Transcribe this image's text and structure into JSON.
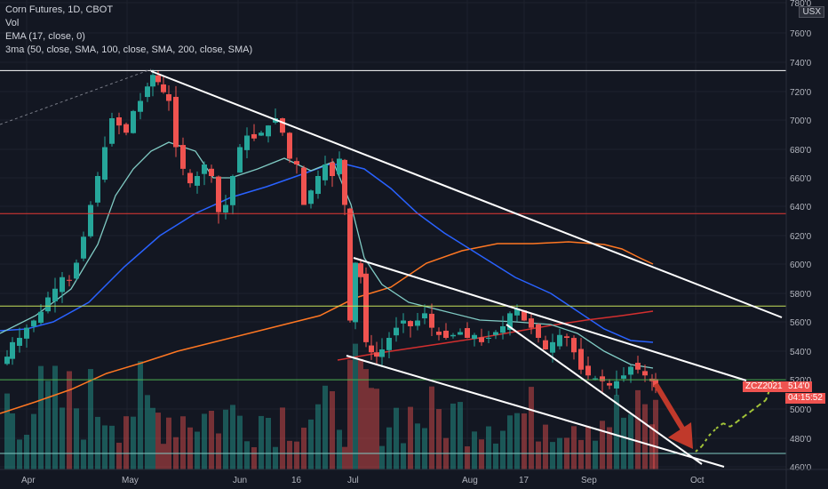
{
  "legend": {
    "title": "Corn Futures, 1D, CBOT",
    "vol": "Vol",
    "ema": "EMA (17, close, 0)",
    "ma3": "3ma (50, close, SMA, 100, close, SMA, 200, close, SMA)"
  },
  "price_axis": {
    "unit": "USX",
    "labels": [
      "780'0",
      "760'0",
      "740'0",
      "720'0",
      "700'0",
      "680'0",
      "660'0",
      "640'0",
      "620'0",
      "600'0",
      "580'0",
      "560'0",
      "540'0",
      "520'0",
      "500'0",
      "480'0",
      "460'0"
    ]
  },
  "time_axis": {
    "labels": [
      "Apr",
      "May",
      "Jun",
      "16",
      "Jul",
      "Aug",
      "17",
      "Sep",
      "Oct"
    ]
  },
  "quote": {
    "symbol": "ZCZ2021",
    "price": "514'0",
    "countdown": "04:15:52"
  },
  "colors": {
    "up": "#26a69a",
    "down": "#ef5350",
    "ema": "#80cbc4",
    "ma50": "#2962ff",
    "ma100": "#ff7722",
    "ma200": "#d32f2f",
    "trendline": "#ffffff",
    "support_green": "#4caf50",
    "level_yellow": "#c6e05a",
    "level_red": "#e53935",
    "projection": "#a4c639",
    "arrow": "#c0392b"
  },
  "chart_data": {
    "type": "candlestick",
    "title": "Corn Futures, 1D, CBOT",
    "ylabel": "USX",
    "ylim": [
      456,
      782
    ],
    "x_ticks": [
      "Apr",
      "May",
      "Jun",
      "16",
      "Jul",
      "Aug",
      "17",
      "Sep",
      "Oct"
    ],
    "horizontal_levels": [
      {
        "value": 733,
        "color": "white"
      },
      {
        "value": 634,
        "color": "red"
      },
      {
        "value": 570,
        "color": "yellow"
      },
      {
        "value": 519,
        "color": "green"
      },
      {
        "value": 468,
        "color": "teal"
      }
    ],
    "last_price": 514
  }
}
